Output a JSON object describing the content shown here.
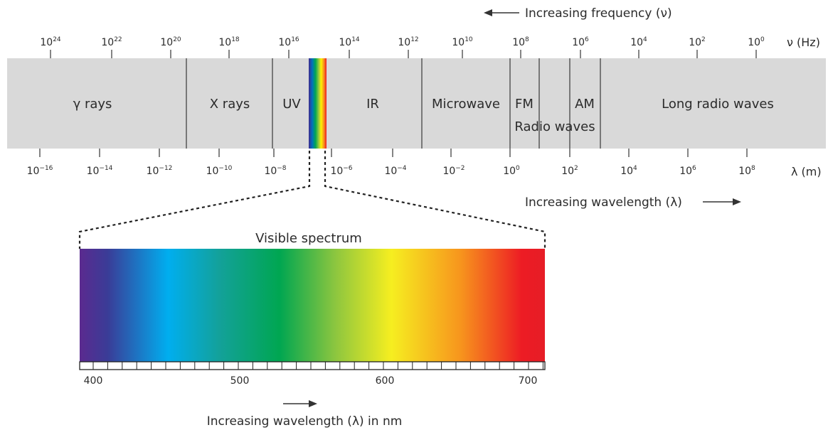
{
  "frequency_axis": {
    "arrow_caption": "Increasing frequency (ν)",
    "unit_label": "ν (Hz)",
    "ticks": [
      {
        "base": "10",
        "exp": "24"
      },
      {
        "base": "10",
        "exp": "22"
      },
      {
        "base": "10",
        "exp": "20"
      },
      {
        "base": "10",
        "exp": "18"
      },
      {
        "base": "10",
        "exp": "16"
      },
      {
        "base": "10",
        "exp": "14"
      },
      {
        "base": "10",
        "exp": "12"
      },
      {
        "base": "10",
        "exp": "10"
      },
      {
        "base": "10",
        "exp": "8"
      },
      {
        "base": "10",
        "exp": "6"
      },
      {
        "base": "10",
        "exp": "4"
      },
      {
        "base": "10",
        "exp": "2"
      },
      {
        "base": "10",
        "exp": "0"
      }
    ]
  },
  "wavelength_axis": {
    "arrow_caption": "Increasing wavelength (λ)",
    "unit_label": "λ (m)",
    "ticks": [
      {
        "base": "10",
        "exp": "−16"
      },
      {
        "base": "10",
        "exp": "−14"
      },
      {
        "base": "10",
        "exp": "−12"
      },
      {
        "base": "10",
        "exp": "−10"
      },
      {
        "base": "10",
        "exp": "−8"
      },
      {
        "base": "10",
        "exp": "−6"
      },
      {
        "base": "10",
        "exp": "−4"
      },
      {
        "base": "10",
        "exp": "−2"
      },
      {
        "base": "10",
        "exp": "0"
      },
      {
        "base": "10",
        "exp": "2"
      },
      {
        "base": "10",
        "exp": "4"
      },
      {
        "base": "10",
        "exp": "6"
      },
      {
        "base": "10",
        "exp": "8"
      }
    ]
  },
  "bands": {
    "gamma": "γ  rays",
    "xray": "X rays",
    "uv": "UV",
    "ir": "IR",
    "microwave": "Microwave",
    "fm": "FM",
    "am": "AM",
    "radio": "Radio waves",
    "long_radio": "Long radio waves"
  },
  "visible": {
    "title": "Visible spectrum",
    "scale_labels": [
      "400",
      "500",
      "600",
      "700"
    ],
    "caption": "Increasing wavelength (λ) in nm"
  },
  "colors": {
    "band_fill": "#d9d9d9",
    "rainbow": [
      "#5b2a8f",
      "#3c54a5",
      "#00aeef",
      "#00a651",
      "#8dc63f",
      "#fff200",
      "#f7941d",
      "#ed1c24"
    ]
  }
}
